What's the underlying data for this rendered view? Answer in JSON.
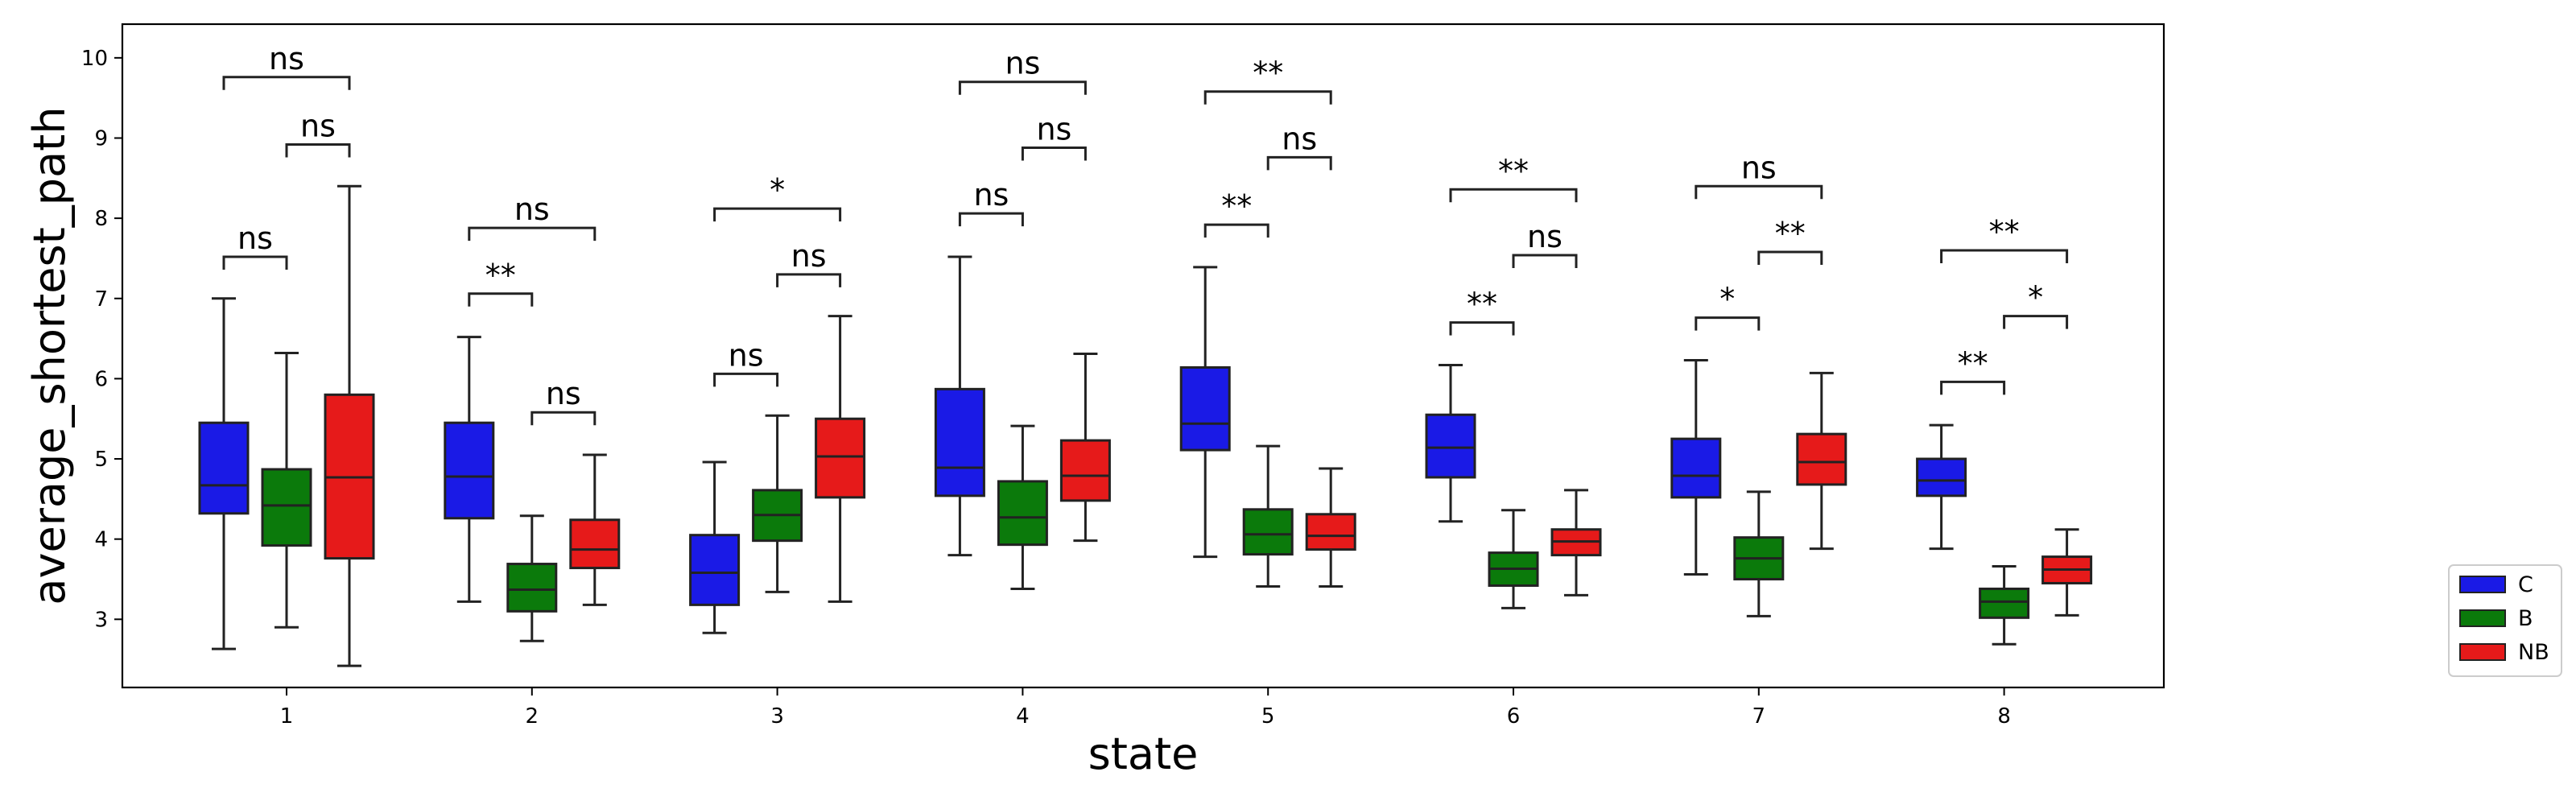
{
  "chart_data": {
    "type": "box",
    "title": "",
    "xlabel": "state",
    "ylabel": "average_shortest_path",
    "categories": [
      "1",
      "2",
      "3",
      "4",
      "5",
      "6",
      "7",
      "8"
    ],
    "ylim": [
      2.15,
      10.42
    ],
    "yticks": [
      3,
      4,
      5,
      6,
      7,
      8,
      9,
      10
    ],
    "grid": false,
    "legend_position": "outside-right-bottom",
    "series": [
      {
        "name": "C",
        "color": "#1a1ae6",
        "boxes": [
          {
            "min": 2.63,
            "q1": 4.32,
            "median": 4.67,
            "q3": 5.45,
            "max": 7.0
          },
          {
            "min": 3.22,
            "q1": 4.26,
            "median": 4.78,
            "q3": 5.45,
            "max": 6.52
          },
          {
            "min": 2.83,
            "q1": 3.18,
            "median": 3.58,
            "q3": 4.05,
            "max": 4.96
          },
          {
            "min": 3.8,
            "q1": 4.54,
            "median": 4.89,
            "q3": 5.87,
            "max": 7.52
          },
          {
            "min": 3.78,
            "q1": 5.11,
            "median": 5.44,
            "q3": 6.14,
            "max": 7.39
          },
          {
            "min": 4.22,
            "q1": 4.77,
            "median": 5.14,
            "q3": 5.55,
            "max": 6.17
          },
          {
            "min": 3.56,
            "q1": 4.52,
            "median": 4.79,
            "q3": 5.25,
            "max": 6.23
          },
          {
            "min": 3.88,
            "q1": 4.54,
            "median": 4.73,
            "q3": 5.0,
            "max": 5.42
          }
        ]
      },
      {
        "name": "B",
        "color": "#0b7a0b",
        "boxes": [
          {
            "min": 2.9,
            "q1": 3.92,
            "median": 4.42,
            "q3": 4.87,
            "max": 6.32
          },
          {
            "min": 2.73,
            "q1": 3.1,
            "median": 3.37,
            "q3": 3.69,
            "max": 4.29
          },
          {
            "min": 3.34,
            "q1": 3.98,
            "median": 4.3,
            "q3": 4.61,
            "max": 5.54
          },
          {
            "min": 3.38,
            "q1": 3.93,
            "median": 4.27,
            "q3": 4.72,
            "max": 5.41
          },
          {
            "min": 3.41,
            "q1": 3.81,
            "median": 4.06,
            "q3": 4.37,
            "max": 5.16
          },
          {
            "min": 3.14,
            "q1": 3.42,
            "median": 3.63,
            "q3": 3.83,
            "max": 4.36
          },
          {
            "min": 3.04,
            "q1": 3.5,
            "median": 3.76,
            "q3": 4.02,
            "max": 4.59
          },
          {
            "min": 2.69,
            "q1": 3.02,
            "median": 3.22,
            "q3": 3.38,
            "max": 3.66
          }
        ]
      },
      {
        "name": "NB",
        "color": "#e61a1a",
        "boxes": [
          {
            "min": 2.42,
            "q1": 3.76,
            "median": 4.77,
            "q3": 5.8,
            "max": 8.4
          },
          {
            "min": 3.18,
            "q1": 3.64,
            "median": 3.87,
            "q3": 4.24,
            "max": 5.05
          },
          {
            "min": 3.22,
            "q1": 4.52,
            "median": 5.03,
            "q3": 5.5,
            "max": 6.78
          },
          {
            "min": 3.98,
            "q1": 4.48,
            "median": 4.79,
            "q3": 5.23,
            "max": 6.31
          },
          {
            "min": 3.41,
            "q1": 3.87,
            "median": 4.04,
            "q3": 4.31,
            "max": 4.88
          },
          {
            "min": 3.3,
            "q1": 3.8,
            "median": 3.97,
            "q3": 4.12,
            "max": 4.61
          },
          {
            "min": 3.88,
            "q1": 4.68,
            "median": 4.96,
            "q3": 5.31,
            "max": 6.07
          },
          {
            "min": 3.05,
            "q1": 3.45,
            "median": 3.62,
            "q3": 3.78,
            "max": 4.12
          }
        ]
      }
    ],
    "annotations": [
      {
        "state": "1",
        "from": "C",
        "to": "B",
        "y": 7.52,
        "label": "ns"
      },
      {
        "state": "1",
        "from": "B",
        "to": "NB",
        "y": 8.92,
        "label": "ns"
      },
      {
        "state": "1",
        "from": "C",
        "to": "NB",
        "y": 9.76,
        "label": "ns"
      },
      {
        "state": "2",
        "from": "C",
        "to": "B",
        "y": 7.06,
        "label": "**"
      },
      {
        "state": "2",
        "from": "B",
        "to": "NB",
        "y": 5.58,
        "label": "ns"
      },
      {
        "state": "2",
        "from": "C",
        "to": "NB",
        "y": 7.88,
        "label": "ns"
      },
      {
        "state": "3",
        "from": "C",
        "to": "B",
        "y": 6.06,
        "label": "ns"
      },
      {
        "state": "3",
        "from": "B",
        "to": "NB",
        "y": 7.3,
        "label": "ns"
      },
      {
        "state": "3",
        "from": "C",
        "to": "NB",
        "y": 8.12,
        "label": "*"
      },
      {
        "state": "4",
        "from": "C",
        "to": "B",
        "y": 8.06,
        "label": "ns"
      },
      {
        "state": "4",
        "from": "B",
        "to": "NB",
        "y": 8.88,
        "label": "ns"
      },
      {
        "state": "4",
        "from": "C",
        "to": "NB",
        "y": 9.7,
        "label": "ns"
      },
      {
        "state": "5",
        "from": "C",
        "to": "B",
        "y": 7.92,
        "label": "**"
      },
      {
        "state": "5",
        "from": "B",
        "to": "NB",
        "y": 8.76,
        "label": "ns"
      },
      {
        "state": "5",
        "from": "C",
        "to": "NB",
        "y": 9.58,
        "label": "**"
      },
      {
        "state": "6",
        "from": "C",
        "to": "B",
        "y": 6.7,
        "label": "**"
      },
      {
        "state": "6",
        "from": "B",
        "to": "NB",
        "y": 7.54,
        "label": "ns"
      },
      {
        "state": "6",
        "from": "C",
        "to": "NB",
        "y": 8.36,
        "label": "**"
      },
      {
        "state": "7",
        "from": "C",
        "to": "B",
        "y": 6.76,
        "label": "*"
      },
      {
        "state": "7",
        "from": "B",
        "to": "NB",
        "y": 7.58,
        "label": "**"
      },
      {
        "state": "7",
        "from": "C",
        "to": "NB",
        "y": 8.4,
        "label": "ns"
      },
      {
        "state": "8",
        "from": "C",
        "to": "B",
        "y": 5.96,
        "label": "**"
      },
      {
        "state": "8",
        "from": "B",
        "to": "NB",
        "y": 6.78,
        "label": "*"
      },
      {
        "state": "8",
        "from": "C",
        "to": "NB",
        "y": 7.6,
        "label": "**"
      }
    ]
  }
}
